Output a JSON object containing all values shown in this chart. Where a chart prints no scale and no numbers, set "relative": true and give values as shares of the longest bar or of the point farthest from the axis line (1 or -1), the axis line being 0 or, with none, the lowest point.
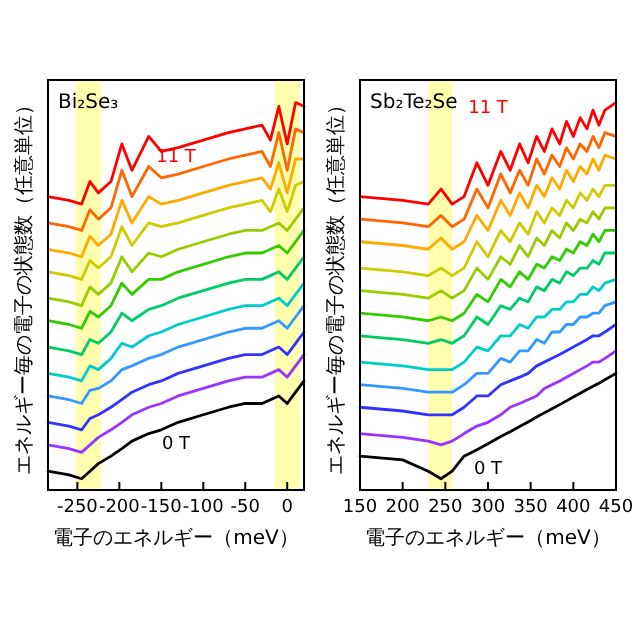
{
  "chart_data": [
    {
      "type": "line",
      "relative": true,
      "xlabel": "電子のエネルギー（meV）",
      "ylabel": "エネルギー毎の電子の状態数（任意単位）",
      "xlim": [
        -285,
        20
      ],
      "xticks": [
        -250,
        -200,
        -150,
        -100,
        -50,
        0
      ],
      "x": [
        -285,
        -260,
        -245,
        -235,
        -225,
        -210,
        -197,
        -185,
        -165,
        -150,
        -130,
        -100,
        -70,
        -50,
        -30,
        -20,
        -10,
        0,
        10,
        20
      ],
      "bands": [
        {
          "axis": "x",
          "from": -252,
          "to": -222,
          "color": "#ffff99"
        },
        {
          "axis": "x",
          "from": -15,
          "to": 15,
          "color": "#ffff99"
        }
      ],
      "annotations": [
        "Bi₂Se₃",
        "11 T",
        "0 T"
      ],
      "series": [
        {
          "color": "#000000",
          "values": [
            0.02,
            0.01,
            0.0,
            0.02,
            0.04,
            0.06,
            0.08,
            0.1,
            0.12,
            0.13,
            0.15,
            0.17,
            0.19,
            0.2,
            0.2,
            0.21,
            0.22,
            0.2,
            0.23,
            0.26
          ]
        },
        {
          "color": "#9933ff",
          "values": [
            0.09,
            0.08,
            0.07,
            0.09,
            0.11,
            0.13,
            0.15,
            0.17,
            0.19,
            0.2,
            0.22,
            0.24,
            0.26,
            0.27,
            0.27,
            0.28,
            0.29,
            0.27,
            0.3,
            0.33
          ]
        },
        {
          "color": "#3333ff",
          "values": [
            0.15,
            0.14,
            0.13,
            0.16,
            0.17,
            0.19,
            0.21,
            0.23,
            0.25,
            0.26,
            0.28,
            0.3,
            0.32,
            0.33,
            0.33,
            0.34,
            0.35,
            0.33,
            0.36,
            0.39
          ]
        },
        {
          "color": "#3399ff",
          "values": [
            0.22,
            0.21,
            0.2,
            0.235,
            0.24,
            0.26,
            0.29,
            0.3,
            0.32,
            0.33,
            0.35,
            0.37,
            0.39,
            0.4,
            0.4,
            0.41,
            0.42,
            0.4,
            0.43,
            0.46
          ]
        },
        {
          "color": "#00cccc",
          "values": [
            0.28,
            0.27,
            0.26,
            0.3,
            0.29,
            0.32,
            0.36,
            0.35,
            0.38,
            0.39,
            0.41,
            0.43,
            0.45,
            0.46,
            0.46,
            0.47,
            0.48,
            0.46,
            0.49,
            0.52
          ]
        },
        {
          "color": "#00cc66",
          "values": [
            0.35,
            0.34,
            0.33,
            0.37,
            0.36,
            0.39,
            0.44,
            0.42,
            0.45,
            0.46,
            0.48,
            0.5,
            0.52,
            0.53,
            0.53,
            0.54,
            0.55,
            0.53,
            0.56,
            0.59
          ]
        },
        {
          "color": "#33cc00",
          "values": [
            0.42,
            0.41,
            0.4,
            0.445,
            0.43,
            0.46,
            0.52,
            0.49,
            0.53,
            0.53,
            0.55,
            0.57,
            0.59,
            0.6,
            0.6,
            0.61,
            0.62,
            0.6,
            0.63,
            0.66
          ]
        },
        {
          "color": "#99cc00",
          "values": [
            0.48,
            0.47,
            0.46,
            0.51,
            0.49,
            0.52,
            0.59,
            0.55,
            0.6,
            0.59,
            0.61,
            0.63,
            0.65,
            0.66,
            0.66,
            0.67,
            0.68,
            0.66,
            0.69,
            0.72
          ]
        },
        {
          "color": "#cccc00",
          "values": [
            0.55,
            0.54,
            0.53,
            0.58,
            0.56,
            0.59,
            0.67,
            0.62,
            0.68,
            0.67,
            0.68,
            0.7,
            0.72,
            0.73,
            0.74,
            0.71,
            0.77,
            0.71,
            0.78,
            0.79
          ]
        },
        {
          "color": "#ffaa00",
          "values": [
            0.61,
            0.6,
            0.59,
            0.645,
            0.62,
            0.65,
            0.74,
            0.68,
            0.75,
            0.73,
            0.74,
            0.76,
            0.78,
            0.79,
            0.8,
            0.77,
            0.84,
            0.76,
            0.85,
            0.85
          ]
        },
        {
          "color": "#ff6600",
          "values": [
            0.68,
            0.67,
            0.66,
            0.715,
            0.69,
            0.72,
            0.82,
            0.75,
            0.83,
            0.8,
            0.81,
            0.83,
            0.85,
            0.86,
            0.87,
            0.83,
            0.92,
            0.82,
            0.93,
            0.92
          ]
        },
        {
          "color": "#ff0000",
          "values": [
            0.75,
            0.74,
            0.73,
            0.79,
            0.76,
            0.79,
            0.89,
            0.82,
            0.91,
            0.87,
            0.88,
            0.9,
            0.92,
            0.93,
            0.94,
            0.9,
            0.99,
            0.89,
            1.0,
            0.99
          ]
        }
      ]
    },
    {
      "type": "line",
      "relative": true,
      "xlabel": "電子のエネルギー（meV）",
      "ylabel": "エネルギー毎の電子の状態数（任意単位）",
      "xlim": [
        150,
        450
      ],
      "xticks": [
        150,
        200,
        250,
        300,
        350,
        400,
        450
      ],
      "x": [
        150,
        200,
        230,
        245,
        258,
        272,
        287,
        300,
        315,
        326,
        337,
        347,
        357,
        366,
        375,
        384,
        392,
        400,
        408,
        416,
        423,
        430,
        437,
        450
      ],
      "bands": [
        {
          "axis": "x",
          "from": 230,
          "to": 258,
          "color": "#ffff99"
        }
      ],
      "annotations": [
        "Sb₂Te₂Se",
        "11 T",
        "0 T"
      ],
      "series": [
        {
          "color": "#000000",
          "values": [
            0.06,
            0.05,
            0.02,
            0.0,
            0.02,
            0.06,
            0.077,
            0.093,
            0.112,
            0.125,
            0.139,
            0.151,
            0.164,
            0.175,
            0.186,
            0.197,
            0.207,
            0.217,
            0.227,
            0.237,
            0.246,
            0.254,
            0.263,
            0.28
          ]
        },
        {
          "color": "#9933ff",
          "values": [
            0.12,
            0.11,
            0.1,
            0.09,
            0.1,
            0.12,
            0.14,
            0.15,
            0.17,
            0.19,
            0.2,
            0.21,
            0.22,
            0.24,
            0.25,
            0.26,
            0.27,
            0.28,
            0.29,
            0.3,
            0.31,
            0.31,
            0.32,
            0.34
          ]
        },
        {
          "color": "#3333ff",
          "values": [
            0.19,
            0.18,
            0.17,
            0.17,
            0.17,
            0.19,
            0.22,
            0.22,
            0.25,
            0.26,
            0.27,
            0.28,
            0.3,
            0.31,
            0.32,
            0.33,
            0.34,
            0.35,
            0.36,
            0.37,
            0.38,
            0.38,
            0.39,
            0.41
          ]
        },
        {
          "color": "#3399ff",
          "values": [
            0.25,
            0.24,
            0.23,
            0.23,
            0.23,
            0.25,
            0.28,
            0.28,
            0.32,
            0.31,
            0.34,
            0.34,
            0.37,
            0.36,
            0.39,
            0.39,
            0.41,
            0.41,
            0.43,
            0.43,
            0.44,
            0.44,
            0.46,
            0.47
          ]
        },
        {
          "color": "#00cccc",
          "values": [
            0.31,
            0.3,
            0.29,
            0.29,
            0.29,
            0.31,
            0.35,
            0.34,
            0.38,
            0.38,
            0.41,
            0.4,
            0.43,
            0.43,
            0.45,
            0.45,
            0.47,
            0.47,
            0.49,
            0.49,
            0.51,
            0.5,
            0.52,
            0.53
          ]
        },
        {
          "color": "#00cc66",
          "values": [
            0.38,
            0.37,
            0.36,
            0.37,
            0.36,
            0.38,
            0.43,
            0.41,
            0.46,
            0.45,
            0.48,
            0.47,
            0.51,
            0.5,
            0.53,
            0.52,
            0.55,
            0.54,
            0.56,
            0.56,
            0.58,
            0.57,
            0.6,
            0.6
          ]
        },
        {
          "color": "#33cc00",
          "values": [
            0.44,
            0.43,
            0.42,
            0.43,
            0.42,
            0.44,
            0.49,
            0.47,
            0.53,
            0.51,
            0.55,
            0.53,
            0.57,
            0.56,
            0.59,
            0.58,
            0.61,
            0.6,
            0.63,
            0.62,
            0.65,
            0.63,
            0.66,
            0.66
          ]
        },
        {
          "color": "#99cc00",
          "values": [
            0.5,
            0.49,
            0.48,
            0.5,
            0.48,
            0.5,
            0.56,
            0.53,
            0.59,
            0.57,
            0.62,
            0.59,
            0.64,
            0.62,
            0.66,
            0.64,
            0.68,
            0.66,
            0.69,
            0.68,
            0.71,
            0.69,
            0.72,
            0.72
          ]
        },
        {
          "color": "#cccc00",
          "values": [
            0.56,
            0.55,
            0.54,
            0.56,
            0.54,
            0.56,
            0.63,
            0.59,
            0.66,
            0.63,
            0.68,
            0.65,
            0.71,
            0.68,
            0.72,
            0.7,
            0.74,
            0.72,
            0.76,
            0.74,
            0.77,
            0.75,
            0.78,
            0.78
          ]
        },
        {
          "color": "#ffaa00",
          "values": [
            0.63,
            0.62,
            0.61,
            0.64,
            0.61,
            0.63,
            0.7,
            0.66,
            0.74,
            0.7,
            0.76,
            0.72,
            0.78,
            0.75,
            0.8,
            0.77,
            0.82,
            0.79,
            0.83,
            0.81,
            0.85,
            0.82,
            0.86,
            0.85
          ]
        },
        {
          "color": "#ff6600",
          "values": [
            0.69,
            0.68,
            0.67,
            0.7,
            0.67,
            0.69,
            0.77,
            0.72,
            0.81,
            0.76,
            0.82,
            0.78,
            0.85,
            0.81,
            0.86,
            0.83,
            0.88,
            0.85,
            0.89,
            0.87,
            0.91,
            0.88,
            0.92,
            0.91
          ]
        },
        {
          "color": "#ff0000",
          "values": [
            0.75,
            0.74,
            0.73,
            0.77,
            0.73,
            0.75,
            0.84,
            0.78,
            0.87,
            0.82,
            0.89,
            0.84,
            0.91,
            0.87,
            0.93,
            0.89,
            0.95,
            0.91,
            0.96,
            0.93,
            0.98,
            0.94,
            0.98,
            1.0
          ]
        }
      ]
    }
  ]
}
